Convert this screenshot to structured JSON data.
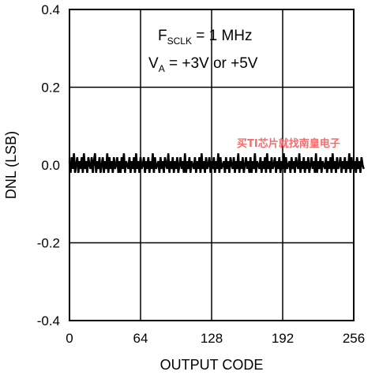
{
  "chart_data": {
    "type": "line",
    "xlabel": "OUTPUT CODE",
    "ylabel": "DNL (LSB)",
    "xlim": [
      0,
      256
    ],
    "ylim": [
      -0.4,
      0.4
    ],
    "x_ticks": [
      "0",
      "64",
      "128",
      "192",
      "256"
    ],
    "y_ticks": [
      "0.4",
      "0.2",
      "0.0",
      "-0.2",
      "-0.4"
    ],
    "grid": true,
    "annotations": {
      "line1_main": "F",
      "line1_sub": "SCLK",
      "line1_rest": " = 1 MHz",
      "line2_main": "V",
      "line2_sub": "A",
      "line2_rest": " = +3V or +5V"
    },
    "watermark": "买TI芯片就找南皇电子",
    "series": [
      {
        "x_start": 0,
        "x_step": 1,
        "values": [
          0.01,
          -0.02,
          0.02,
          -0.01,
          0.03,
          -0.02,
          0.0,
          0.02,
          -0.02,
          0.01,
          -0.01,
          0.02,
          -0.02,
          0.03,
          -0.01,
          0.01,
          -0.02,
          0.02,
          0.0,
          -0.01,
          0.02,
          -0.02,
          0.01,
          0.03,
          -0.02,
          0.01,
          -0.01,
          0.02,
          -0.02,
          0.0,
          0.02,
          -0.02,
          0.01,
          -0.01,
          0.03,
          -0.02,
          0.02,
          -0.01,
          0.01,
          -0.02,
          0.02,
          -0.01,
          0.0,
          0.02,
          -0.02,
          0.01,
          -0.02,
          0.02,
          -0.01,
          0.03,
          -0.02,
          0.01,
          0.0,
          -0.01,
          0.02,
          -0.02,
          0.01,
          -0.01,
          0.02,
          -0.02,
          0.03,
          -0.01,
          0.01,
          -0.02,
          0.02,
          -0.01,
          0.0,
          0.02,
          -0.02,
          0.01,
          -0.01,
          0.02,
          -0.02,
          0.01,
          -0.01,
          0.03,
          -0.02,
          0.02,
          -0.01,
          0.0,
          0.01,
          -0.02,
          0.02,
          -0.01,
          0.01,
          -0.02,
          0.02,
          0.0,
          -0.01,
          0.03,
          -0.02,
          0.01,
          -0.01,
          0.02,
          -0.02,
          0.01,
          -0.01,
          0.02,
          -0.02,
          0.0,
          0.02,
          -0.01,
          0.01,
          -0.02,
          0.03,
          -0.02,
          0.01,
          -0.01,
          0.02,
          -0.02,
          0.01,
          0.0,
          -0.01,
          0.02,
          -0.02,
          0.01,
          -0.01,
          0.02,
          -0.02,
          0.03,
          -0.01,
          0.01,
          -0.02,
          0.02,
          -0.01,
          0.0,
          0.02,
          -0.02,
          0.01,
          -0.01,
          0.02,
          -0.02,
          0.01,
          -0.01,
          0.03,
          -0.02,
          0.02,
          -0.01,
          0.0,
          0.01,
          -0.02,
          0.02,
          -0.01,
          0.01,
          -0.02,
          0.02,
          0.0,
          -0.01,
          0.02,
          -0.02,
          0.01,
          -0.01,
          0.03,
          -0.02,
          0.01,
          -0.01,
          0.02,
          -0.02,
          0.0,
          0.02,
          -0.01,
          0.01,
          -0.02,
          0.02,
          -0.02,
          0.01,
          -0.01,
          0.03,
          -0.02,
          0.01,
          0.0,
          -0.01,
          0.02,
          -0.02,
          0.01,
          -0.01,
          0.02,
          -0.02,
          0.03,
          -0.01,
          0.01,
          -0.02,
          0.02,
          -0.01,
          0.0,
          0.02,
          -0.02,
          0.01,
          -0.01,
          0.02,
          -0.02,
          0.01,
          -0.01,
          0.03,
          -0.02,
          0.02,
          -0.01,
          0.0,
          0.01,
          -0.02,
          0.02,
          -0.01,
          0.01,
          -0.02,
          0.02,
          0.0,
          -0.01,
          0.03,
          -0.02,
          0.01,
          -0.01,
          0.02,
          -0.02,
          0.01,
          -0.01,
          0.02,
          -0.02,
          0.0,
          0.02,
          -0.01,
          0.01,
          -0.02,
          0.03,
          -0.02,
          0.01,
          -0.01,
          0.02,
          -0.02,
          0.01,
          0.0,
          -0.01,
          0.02,
          -0.02,
          0.01,
          -0.01,
          0.02,
          -0.02,
          0.03,
          -0.01,
          0.01,
          -0.02,
          0.02,
          -0.01,
          0.0,
          0.02,
          -0.02,
          0.01,
          -0.01,
          0.02,
          -0.02,
          0.01,
          -0.01,
          0.03,
          -0.02,
          0.02,
          -0.01,
          0.0,
          0.01,
          -0.02,
          0.02,
          -0.01,
          0.01,
          -0.02,
          0.02,
          0.0,
          -0.01
        ]
      }
    ]
  }
}
